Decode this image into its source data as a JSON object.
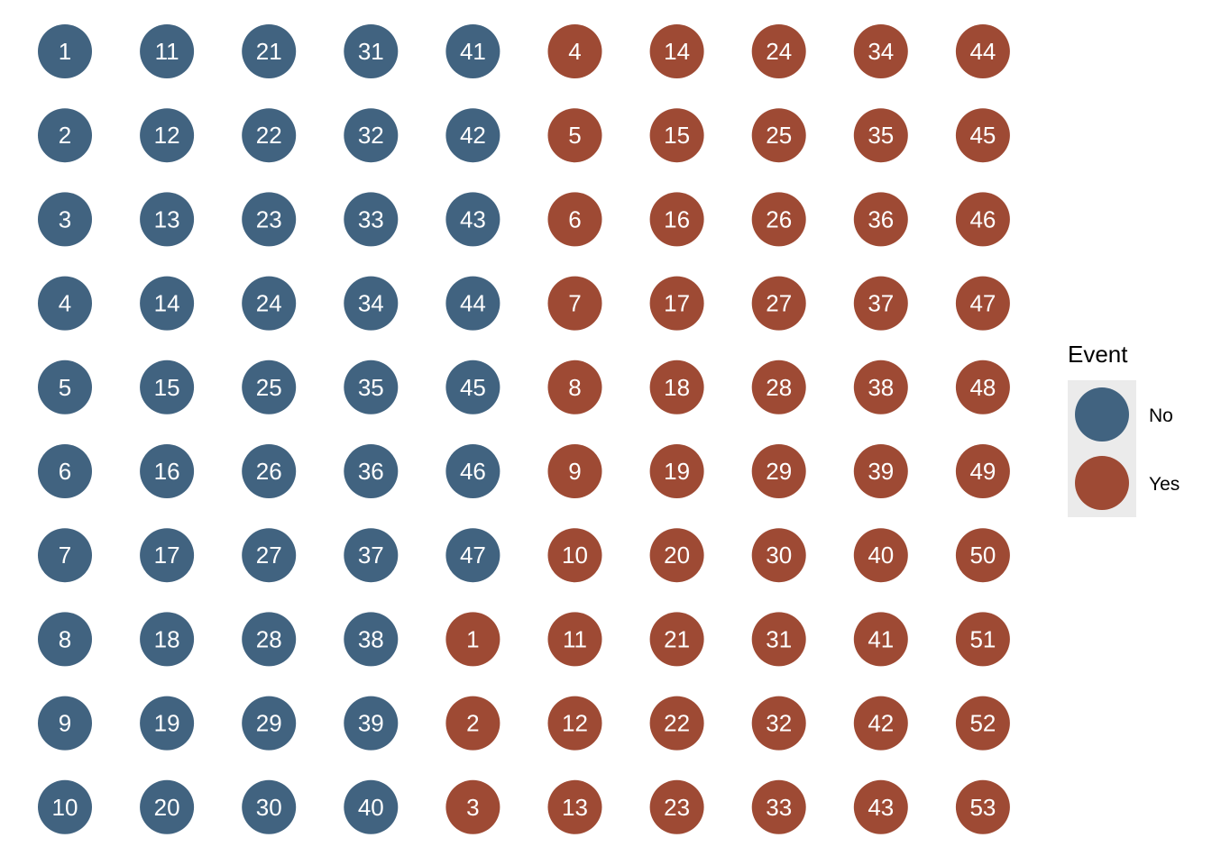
{
  "chart_data": {
    "type": "scatter",
    "title": "",
    "xlabel": "",
    "ylabel": "",
    "grid": false,
    "legend_position": "right",
    "legend_title": "Event",
    "n_columns": 10,
    "n_rows": 10,
    "series": [
      {
        "name": "No",
        "color": "#416380",
        "labels": [
          1,
          2,
          3,
          4,
          5,
          6,
          7,
          8,
          9,
          10,
          11,
          12,
          13,
          14,
          15,
          16,
          17,
          18,
          19,
          20,
          21,
          22,
          23,
          24,
          25,
          26,
          27,
          28,
          29,
          30,
          31,
          32,
          33,
          34,
          35,
          36,
          37,
          38,
          39,
          40,
          41,
          42,
          43,
          44,
          45,
          46,
          47
        ]
      },
      {
        "name": "Yes",
        "color": "#9e4a34",
        "labels": [
          1,
          2,
          3,
          4,
          5,
          6,
          7,
          8,
          9,
          10,
          11,
          12,
          13,
          14,
          15,
          16,
          17,
          18,
          19,
          20,
          21,
          22,
          23,
          24,
          25,
          26,
          27,
          28,
          29,
          30,
          31,
          32,
          33,
          34,
          35,
          36,
          37,
          38,
          39,
          40,
          41,
          42,
          43,
          44,
          45,
          46,
          47,
          48,
          49,
          50,
          51,
          52,
          53
        ]
      }
    ],
    "text_color": "#ffffff"
  }
}
